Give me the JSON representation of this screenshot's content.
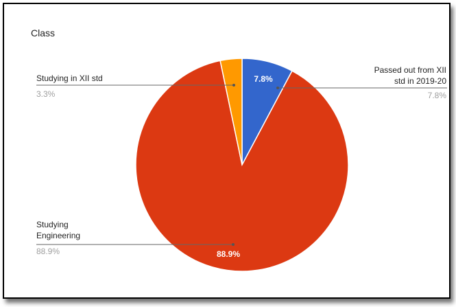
{
  "chart_data": {
    "type": "pie",
    "title": "Class",
    "slices": [
      {
        "label": "Passed out from XII std in 2019-20",
        "label_lines": [
          "Passed out from XII",
          "std in 2019-20"
        ],
        "value": 7.8,
        "display": "7.8%",
        "color": "#3366cc"
      },
      {
        "label": "Studying Engineering",
        "label_lines": [
          "Studying",
          "Engineering"
        ],
        "value": 88.9,
        "display": "88.9%",
        "color": "#dc3912"
      },
      {
        "label": "Studying in XII std",
        "label_lines": [
          "Studying in XII std"
        ],
        "value": 3.3,
        "display": "3.3%",
        "color": "#ff9900"
      }
    ],
    "legend": "labeled"
  }
}
